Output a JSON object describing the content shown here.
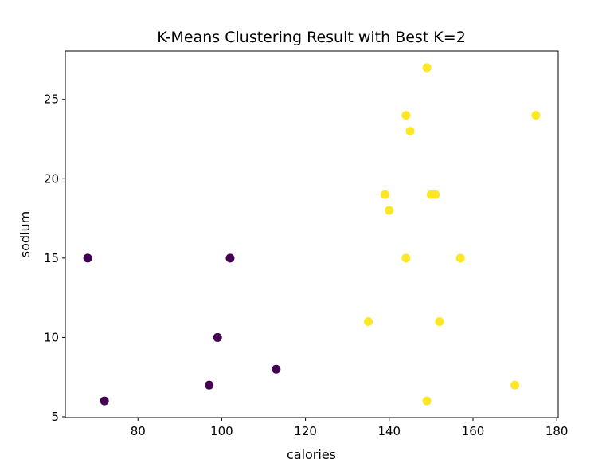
{
  "chart_data": {
    "type": "scatter",
    "title": "K-Means Clustering Result with Best K=2",
    "xlabel": "calories",
    "ylabel": "sodium",
    "xlim": [
      62.65,
      180.35
    ],
    "ylim": [
      4.95,
      28.05
    ],
    "xticks": [
      80,
      100,
      120,
      140,
      160,
      180
    ],
    "yticks": [
      5,
      10,
      15,
      20,
      25
    ],
    "grid": false,
    "legend": "none",
    "cluster_colors": {
      "0": "#440154",
      "1": "#fde725"
    },
    "points": [
      {
        "x": 149,
        "y": 27,
        "cluster": 1
      },
      {
        "x": 144,
        "y": 24,
        "cluster": 1
      },
      {
        "x": 175,
        "y": 24,
        "cluster": 1
      },
      {
        "x": 145,
        "y": 23,
        "cluster": 1
      },
      {
        "x": 139,
        "y": 19,
        "cluster": 1
      },
      {
        "x": 150,
        "y": 19,
        "cluster": 1
      },
      {
        "x": 151,
        "y": 19,
        "cluster": 1
      },
      {
        "x": 140,
        "y": 18,
        "cluster": 1
      },
      {
        "x": 144,
        "y": 15,
        "cluster": 1
      },
      {
        "x": 157,
        "y": 15,
        "cluster": 1
      },
      {
        "x": 135,
        "y": 11,
        "cluster": 1
      },
      {
        "x": 152,
        "y": 11,
        "cluster": 1
      },
      {
        "x": 170,
        "y": 7,
        "cluster": 1
      },
      {
        "x": 149,
        "y": 6,
        "cluster": 1
      },
      {
        "x": 68,
        "y": 15,
        "cluster": 0
      },
      {
        "x": 102,
        "y": 15,
        "cluster": 0
      },
      {
        "x": 99,
        "y": 10,
        "cluster": 0
      },
      {
        "x": 113,
        "y": 8,
        "cluster": 0
      },
      {
        "x": 97,
        "y": 7,
        "cluster": 0
      },
      {
        "x": 72,
        "y": 6,
        "cluster": 0
      }
    ]
  }
}
